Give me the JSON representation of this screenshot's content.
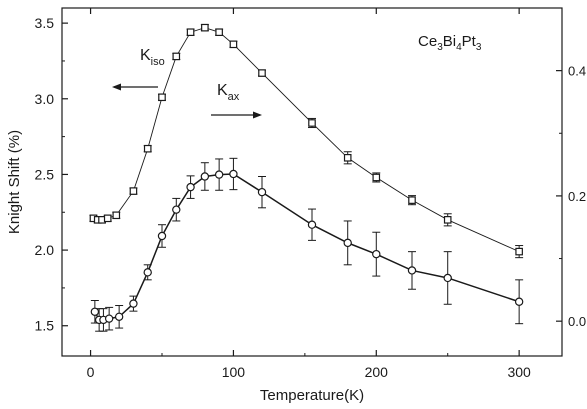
{
  "chart_data": {
    "type": "scatter",
    "xlabel": "Temperature(K)",
    "ylabel": "Knight Shift (%)",
    "xlim": [
      -20,
      330
    ],
    "ylim": [
      1.3,
      3.6
    ],
    "y2lim": [
      -0.0556,
      0.5
    ],
    "x_ticks": [
      0,
      100,
      200,
      300
    ],
    "y_ticks": [
      1.5,
      2.0,
      2.5,
      3.0,
      3.5
    ],
    "y2_ticks": [
      0.0,
      0.2,
      0.4
    ],
    "x_tick_labels": [
      "0",
      "100",
      "200",
      "300"
    ],
    "y_tick_labels": [
      "1.5",
      "2.0",
      "2.5",
      "3.0",
      "3.5"
    ],
    "y2_tick_labels": [
      "0.0",
      "0.2",
      "0.4"
    ],
    "grid": false,
    "annotations": {
      "compound": "Ce3Bi4Pt3",
      "kiso": "Kiso",
      "kax": "Kax"
    },
    "series": [
      {
        "name": "Kiso",
        "axis": "left",
        "marker": "square",
        "x": [
          2,
          5,
          8,
          12,
          18,
          30,
          40,
          50,
          60,
          70,
          80,
          90,
          100,
          120,
          155,
          180,
          200,
          225,
          250,
          300
        ],
        "y": [
          2.21,
          2.2,
          2.2,
          2.21,
          2.23,
          2.39,
          2.67,
          3.01,
          3.28,
          3.44,
          3.47,
          3.44,
          3.36,
          3.17,
          2.84,
          2.61,
          2.48,
          2.33,
          2.2,
          1.99
        ],
        "err": [
          0.02,
          0.02,
          0.02,
          0.02,
          0.02,
          0.02,
          0.02,
          0.02,
          0.02,
          0.02,
          0.02,
          0.02,
          0.02,
          0.02,
          0.03,
          0.04,
          0.03,
          0.03,
          0.04,
          0.04
        ]
      },
      {
        "name": "Kax",
        "axis": "right",
        "marker": "circle",
        "x": [
          3,
          6,
          9,
          13,
          20,
          30,
          40,
          50,
          60,
          70,
          80,
          90,
          100,
          120,
          155,
          180,
          200,
          225,
          250,
          300
        ],
        "y": [
          0.015,
          0.002,
          0.002,
          0.004,
          0.007,
          0.028,
          0.078,
          0.136,
          0.178,
          0.214,
          0.231,
          0.234,
          0.235,
          0.206,
          0.154,
          0.125,
          0.107,
          0.081,
          0.069,
          0.031
        ],
        "err": [
          0.018,
          0.018,
          0.018,
          0.018,
          0.018,
          0.012,
          0.012,
          0.018,
          0.018,
          0.018,
          0.022,
          0.025,
          0.025,
          0.025,
          0.025,
          0.035,
          0.035,
          0.03,
          0.042,
          0.035
        ]
      }
    ]
  }
}
